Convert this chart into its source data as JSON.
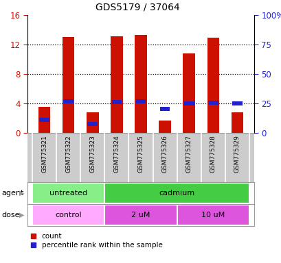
{
  "title": "GDS5179 / 37064",
  "samples": [
    "GSM775321",
    "GSM775322",
    "GSM775323",
    "GSM775324",
    "GSM775325",
    "GSM775326",
    "GSM775327",
    "GSM775328",
    "GSM775329"
  ],
  "red_counts": [
    3.5,
    13.0,
    2.8,
    13.1,
    13.3,
    1.7,
    10.8,
    12.9,
    2.8
  ],
  "blue_percentiles_pct": [
    11.0,
    26.5,
    7.5,
    26.0,
    26.5,
    20.5,
    25.0,
    25.5,
    25.0
  ],
  "ylim_left": [
    0,
    16
  ],
  "ylim_right": [
    0,
    100
  ],
  "yticks_left": [
    0,
    4,
    8,
    12,
    16
  ],
  "yticks_right": [
    0,
    25,
    50,
    75,
    100
  ],
  "ytick_labels_left": [
    "0",
    "4",
    "8",
    "12",
    "16"
  ],
  "ytick_labels_right": [
    "0",
    "25",
    "50",
    "75",
    "100%"
  ],
  "bar_width": 0.5,
  "red_color": "#cc1100",
  "blue_color": "#2222cc",
  "agent_groups": [
    {
      "label": "untreated",
      "start": 0,
      "end": 3,
      "color": "#88ee88"
    },
    {
      "label": "cadmium",
      "start": 3,
      "end": 9,
      "color": "#44cc44"
    }
  ],
  "dose_groups": [
    {
      "label": "control",
      "start": 0,
      "end": 3,
      "color": "#ffaaff"
    },
    {
      "label": "2 uM",
      "start": 3,
      "end": 6,
      "color": "#dd55dd"
    },
    {
      "label": "10 uM",
      "start": 6,
      "end": 9,
      "color": "#dd55dd"
    }
  ],
  "legend_count_label": "count",
  "legend_pct_label": "percentile rank within the sample",
  "label_agent": "agent",
  "label_dose": "dose",
  "tick_label_bg": "#cccccc",
  "spine_color": "#888888"
}
